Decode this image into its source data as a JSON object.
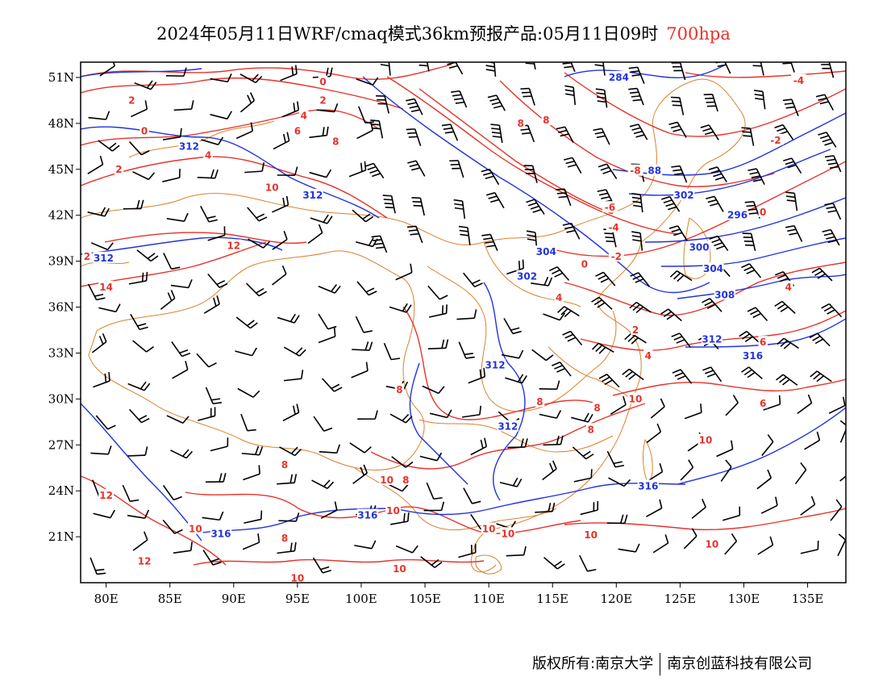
{
  "title": {
    "main": "2024年05月11日WRF/cmaq模式36km预报产品:05月11日09时",
    "level": "700hpa"
  },
  "colors": {
    "temperature_contour": "#e6332a",
    "height_contour": "#2233dd",
    "wind_barb": "#000000",
    "boundary": "#d9822b",
    "frame": "#000000"
  },
  "axes": {
    "x_range": [
      78,
      138
    ],
    "y_range": [
      18,
      52
    ],
    "x_ticks": [
      {
        "v": 80,
        "label": "80E"
      },
      {
        "v": 85,
        "label": "85E"
      },
      {
        "v": 90,
        "label": "90E"
      },
      {
        "v": 95,
        "label": "95E"
      },
      {
        "v": 100,
        "label": "100E"
      },
      {
        "v": 105,
        "label": "105E"
      },
      {
        "v": 110,
        "label": "110E"
      },
      {
        "v": 115,
        "label": "115E"
      },
      {
        "v": 120,
        "label": "120E"
      },
      {
        "v": 125,
        "label": "125E"
      },
      {
        "v": 130,
        "label": "130E"
      },
      {
        "v": 135,
        "label": "135E"
      }
    ],
    "y_ticks": [
      {
        "v": 21,
        "label": "21N"
      },
      {
        "v": 24,
        "label": "24N"
      },
      {
        "v": 27,
        "label": "27N"
      },
      {
        "v": 30,
        "label": "30N"
      },
      {
        "v": 33,
        "label": "33N"
      },
      {
        "v": 36,
        "label": "36N"
      },
      {
        "v": 39,
        "label": "39N"
      },
      {
        "v": 42,
        "label": "42N"
      },
      {
        "v": 45,
        "label": "45N"
      },
      {
        "v": 48,
        "label": "48N"
      },
      {
        "v": 51,
        "label": "51N"
      }
    ]
  },
  "contour_labels": [
    {
      "text": "0",
      "lon": 97,
      "lat": 50.7,
      "kind": "temperature"
    },
    {
      "text": "2",
      "lon": 97,
      "lat": 49.5,
      "kind": "temperature"
    },
    {
      "text": "2",
      "lon": 82,
      "lat": 49.5,
      "kind": "temperature"
    },
    {
      "text": "0",
      "lon": 83,
      "lat": 47.5,
      "kind": "temperature"
    },
    {
      "text": "4",
      "lon": 95.5,
      "lat": 48.5,
      "kind": "temperature"
    },
    {
      "text": "6",
      "lon": 95,
      "lat": 47.5,
      "kind": "temperature"
    },
    {
      "text": "8",
      "lon": 98,
      "lat": 46.8,
      "kind": "temperature"
    },
    {
      "text": "4",
      "lon": 88,
      "lat": 45.9,
      "kind": "temperature"
    },
    {
      "text": "2",
      "lon": 81,
      "lat": 45,
      "kind": "temperature"
    },
    {
      "text": "10",
      "lon": 93,
      "lat": 43.8,
      "kind": "temperature"
    },
    {
      "text": "12",
      "lon": 90,
      "lat": 40,
      "kind": "temperature"
    },
    {
      "text": "14",
      "lon": 80,
      "lat": 37.3,
      "kind": "temperature"
    },
    {
      "text": "2",
      "lon": 78.5,
      "lat": 39.3,
      "kind": "temperature"
    },
    {
      "text": "8",
      "lon": 112.5,
      "lat": 48,
      "kind": "temperature"
    },
    {
      "text": "8",
      "lon": 114.5,
      "lat": 48.2,
      "kind": "temperature"
    },
    {
      "text": "-4",
      "lon": 134.3,
      "lat": 50.8,
      "kind": "temperature"
    },
    {
      "text": "-2",
      "lon": 132.5,
      "lat": 46.9,
      "kind": "temperature"
    },
    {
      "text": "-8",
      "lon": 121.5,
      "lat": 44.9,
      "kind": "temperature"
    },
    {
      "text": "-6",
      "lon": 119.5,
      "lat": 42.5,
      "kind": "temperature"
    },
    {
      "text": "-4",
      "lon": 119.8,
      "lat": 41.2,
      "kind": "temperature"
    },
    {
      "text": "-2",
      "lon": 120,
      "lat": 39.3,
      "kind": "temperature"
    },
    {
      "text": "0",
      "lon": 117.5,
      "lat": 38.8,
      "kind": "temperature"
    },
    {
      "text": "0",
      "lon": 131.5,
      "lat": 42.2,
      "kind": "temperature"
    },
    {
      "text": "4",
      "lon": 115.5,
      "lat": 36.6,
      "kind": "temperature"
    },
    {
      "text": "2",
      "lon": 121.5,
      "lat": 34.5,
      "kind": "temperature"
    },
    {
      "text": "4",
      "lon": 122.5,
      "lat": 32.8,
      "kind": "temperature"
    },
    {
      "text": "4",
      "lon": 133.5,
      "lat": 37.3,
      "kind": "temperature"
    },
    {
      "text": "6",
      "lon": 131.5,
      "lat": 33.7,
      "kind": "temperature"
    },
    {
      "text": "6",
      "lon": 131.5,
      "lat": 29.7,
      "kind": "temperature"
    },
    {
      "text": "8",
      "lon": 103,
      "lat": 30.6,
      "kind": "temperature"
    },
    {
      "text": "8",
      "lon": 114,
      "lat": 29.8,
      "kind": "temperature"
    },
    {
      "text": "8",
      "lon": 118.5,
      "lat": 29.4,
      "kind": "temperature"
    },
    {
      "text": "8",
      "lon": 118,
      "lat": 28,
      "kind": "temperature"
    },
    {
      "text": "10",
      "lon": 121.5,
      "lat": 30,
      "kind": "temperature"
    },
    {
      "text": "10",
      "lon": 127,
      "lat": 27.3,
      "kind": "temperature"
    },
    {
      "text": "8",
      "lon": 94,
      "lat": 25.7,
      "kind": "temperature"
    },
    {
      "text": "8",
      "lon": 103.5,
      "lat": 24.7,
      "kind": "temperature"
    },
    {
      "text": "10",
      "lon": 102,
      "lat": 24.7,
      "kind": "temperature"
    },
    {
      "text": "10",
      "lon": 102.5,
      "lat": 22.7,
      "kind": "temperature"
    },
    {
      "text": "10",
      "lon": 110,
      "lat": 21.5,
      "kind": "temperature"
    },
    {
      "text": "10",
      "lon": 111.5,
      "lat": 21.2,
      "kind": "temperature"
    },
    {
      "text": "10",
      "lon": 118,
      "lat": 21.1,
      "kind": "temperature"
    },
    {
      "text": "10",
      "lon": 127.5,
      "lat": 20.5,
      "kind": "temperature"
    },
    {
      "text": "12",
      "lon": 80,
      "lat": 23.7,
      "kind": "temperature"
    },
    {
      "text": "10",
      "lon": 87,
      "lat": 21.5,
      "kind": "temperature"
    },
    {
      "text": "8",
      "lon": 94,
      "lat": 20.9,
      "kind": "temperature"
    },
    {
      "text": "12",
      "lon": 83,
      "lat": 19.4,
      "kind": "temperature"
    },
    {
      "text": "10",
      "lon": 95,
      "lat": 18.3,
      "kind": "temperature"
    },
    {
      "text": "10",
      "lon": 103,
      "lat": 18.9,
      "kind": "temperature"
    },
    {
      "text": "284",
      "lon": 120.2,
      "lat": 51,
      "kind": "height"
    },
    {
      "text": "312",
      "lon": 86.5,
      "lat": 46.5,
      "kind": "height"
    },
    {
      "text": "312",
      "lon": 96.2,
      "lat": 43.3,
      "kind": "height"
    },
    {
      "text": "312",
      "lon": 79.8,
      "lat": 39.2,
      "kind": "height"
    },
    {
      "text": "88",
      "lon": 123,
      "lat": 44.9,
      "kind": "height"
    },
    {
      "text": "302",
      "lon": 125.3,
      "lat": 43.3,
      "kind": "height"
    },
    {
      "text": "296",
      "lon": 129.5,
      "lat": 42,
      "kind": "height"
    },
    {
      "text": "300",
      "lon": 126.5,
      "lat": 39.9,
      "kind": "height"
    },
    {
      "text": "304",
      "lon": 127.6,
      "lat": 38.5,
      "kind": "height"
    },
    {
      "text": "304",
      "lon": 114.5,
      "lat": 39.6,
      "kind": "height"
    },
    {
      "text": "302",
      "lon": 113,
      "lat": 38,
      "kind": "height"
    },
    {
      "text": "308",
      "lon": 128.5,
      "lat": 36.8,
      "kind": "height"
    },
    {
      "text": "312",
      "lon": 127.5,
      "lat": 33.9,
      "kind": "height"
    },
    {
      "text": "316",
      "lon": 130.7,
      "lat": 32.8,
      "kind": "height"
    },
    {
      "text": "312",
      "lon": 110.5,
      "lat": 32.2,
      "kind": "height"
    },
    {
      "text": "312",
      "lon": 111.5,
      "lat": 28.2,
      "kind": "height"
    },
    {
      "text": "316",
      "lon": 122.5,
      "lat": 24.3,
      "kind": "height"
    },
    {
      "text": "316",
      "lon": 100.5,
      "lat": 22.4,
      "kind": "height"
    },
    {
      "text": "316",
      "lon": 89,
      "lat": 21.2,
      "kind": "height"
    }
  ],
  "footer": {
    "copyright": "版权所有:南京大学",
    "company": "南京创蓝科技有限公司"
  }
}
